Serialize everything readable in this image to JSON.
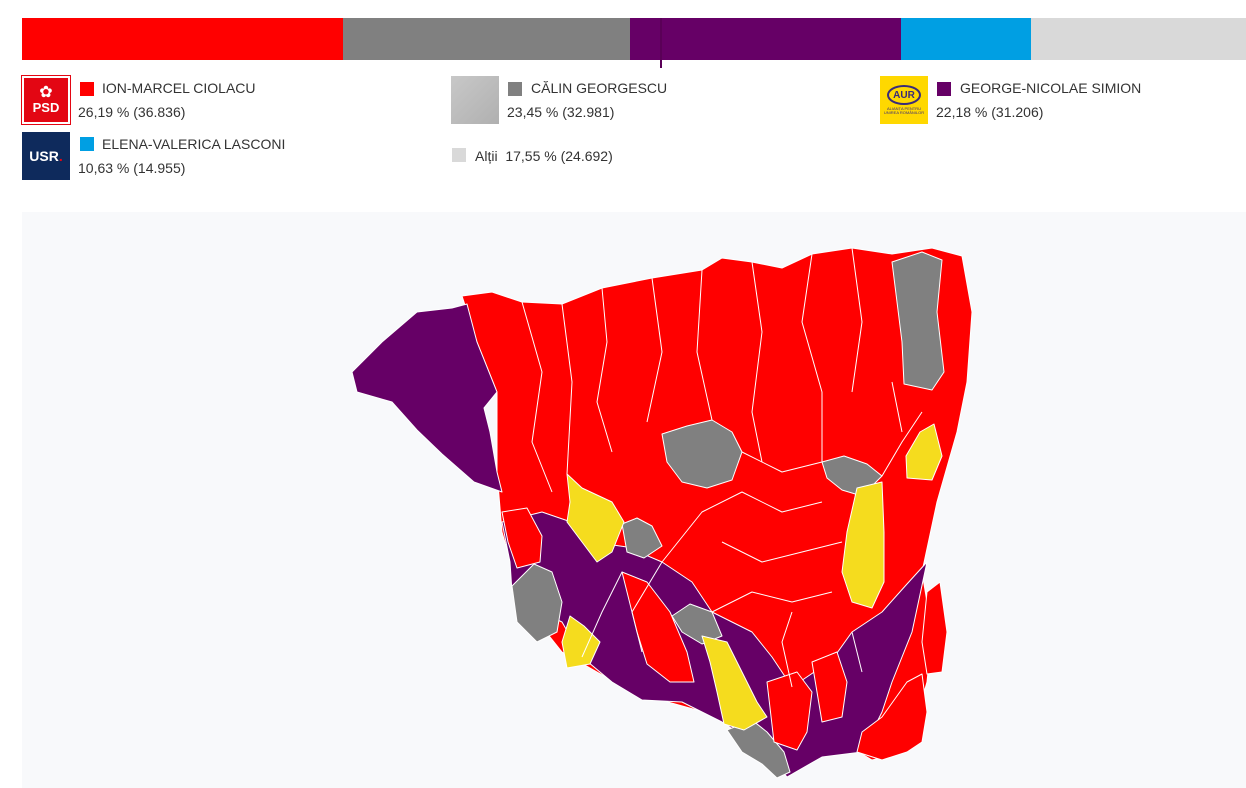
{
  "colors": {
    "ciolacu": "#ff0000",
    "georgescu": "#808080",
    "simion": "#660066",
    "lasconi": "#009fe3",
    "altii": "#d9d9d9",
    "aur_local": "#f5dc1e"
  },
  "results_bar": [
    {
      "id": "ciolacu",
      "share": 26.19
    },
    {
      "id": "georgescu",
      "share": 23.45
    },
    {
      "id": "simion",
      "share": 22.18
    },
    {
      "id": "lasconi",
      "share": 10.63
    },
    {
      "id": "altii",
      "share": 17.55
    }
  ],
  "candidates": {
    "ciolacu": {
      "name": "ION-MARCEL CIOLACU",
      "value": "26,19 % (36.836)",
      "logo_icon": "psd-logo",
      "logo_text": "PSD"
    },
    "georgescu": {
      "name": "CĂLIN GEORGESCU",
      "value": "23,45 % (32.981)",
      "logo_icon": "placeholder-photo"
    },
    "simion": {
      "name": "GEORGE-NICOLAE SIMION",
      "value": "22,18 % (31.206)",
      "logo_icon": "aur-logo",
      "logo_text": "AUR",
      "logo_subtext": "ALIANȚA PENTRU UNIREA ROMÂNILOR"
    },
    "lasconi": {
      "name": "ELENA-VALERICA LASCONI",
      "value": "10,63 % (14.955)",
      "logo_icon": "usr-logo",
      "logo_text": "USR"
    },
    "altii": {
      "name": "Alții",
      "value": "17,55 % (24.692)"
    }
  },
  "map": {
    "regions_by_winner": {
      "ciolacu": 68,
      "simion": 14,
      "georgescu": 8,
      "aur_local": 5
    }
  }
}
